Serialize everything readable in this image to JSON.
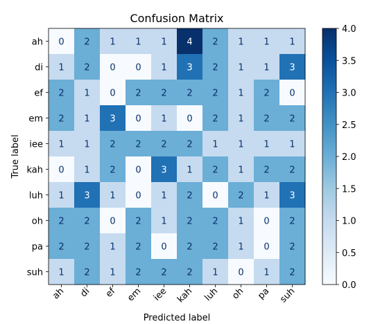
{
  "chart_data": {
    "type": "heatmap",
    "title": "Confusion Matrix",
    "xlabel": "Predicted label",
    "ylabel": "True label",
    "x_categories": [
      "ah",
      "di",
      "ef",
      "em",
      "iee",
      "kah",
      "luh",
      "oh",
      "pa",
      "suh"
    ],
    "y_categories": [
      "ah",
      "di",
      "ef",
      "em",
      "iee",
      "kah",
      "luh",
      "oh",
      "pa",
      "suh"
    ],
    "values": [
      [
        0,
        2,
        1,
        1,
        1,
        4,
        2,
        1,
        1,
        1
      ],
      [
        1,
        2,
        0,
        0,
        1,
        3,
        2,
        1,
        1,
        3
      ],
      [
        2,
        1,
        0,
        2,
        2,
        2,
        2,
        1,
        2,
        0
      ],
      [
        2,
        1,
        3,
        0,
        1,
        0,
        2,
        1,
        2,
        2
      ],
      [
        1,
        1,
        2,
        2,
        2,
        2,
        1,
        1,
        1,
        1
      ],
      [
        0,
        1,
        2,
        0,
        3,
        1,
        2,
        1,
        2,
        2
      ],
      [
        1,
        3,
        1,
        0,
        1,
        2,
        0,
        2,
        1,
        3
      ],
      [
        2,
        2,
        0,
        2,
        1,
        2,
        2,
        1,
        0,
        2
      ],
      [
        2,
        2,
        1,
        2,
        0,
        2,
        2,
        1,
        0,
        2
      ],
      [
        1,
        2,
        1,
        2,
        2,
        2,
        1,
        0,
        1,
        2
      ]
    ],
    "colormap": "Blues",
    "vmin": 0,
    "vmax": 4,
    "colorbar_ticks": [
      "0.0",
      "0.5",
      "1.0",
      "1.5",
      "2.0",
      "2.5",
      "3.0",
      "3.5",
      "4.0"
    ],
    "grid": false,
    "x_tick_rotation_deg": 45
  }
}
